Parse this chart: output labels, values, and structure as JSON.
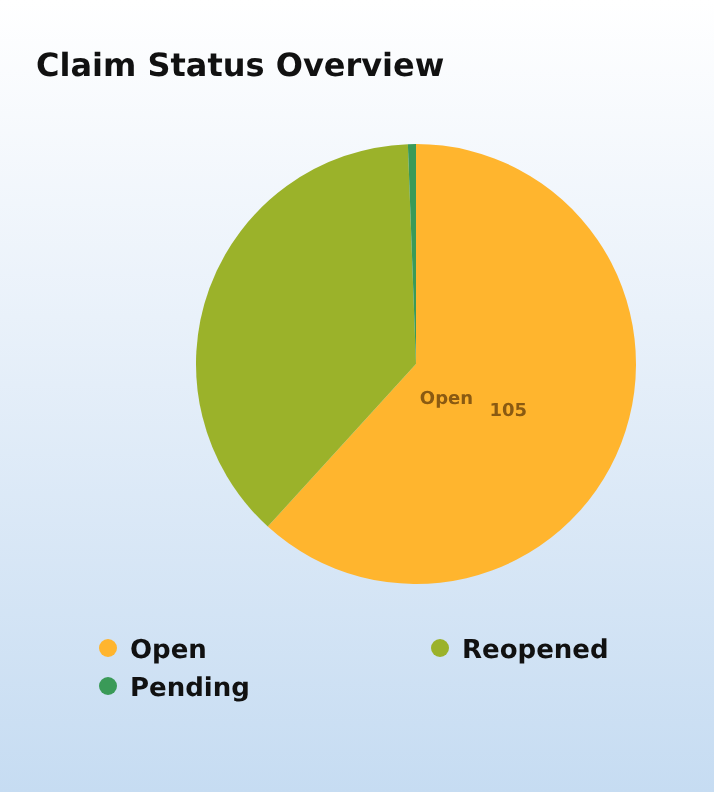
{
  "chart_data": {
    "type": "pie",
    "title": "Claim Status Overview",
    "categories": [
      "Open",
      "Reopened",
      "Pending"
    ],
    "values": [
      105,
      64,
      1
    ],
    "colors": [
      "#ffb52e",
      "#9bb22a",
      "#3a9a58"
    ],
    "legend": "bottom",
    "value_labels": [
      "105",
      null,
      null
    ]
  }
}
